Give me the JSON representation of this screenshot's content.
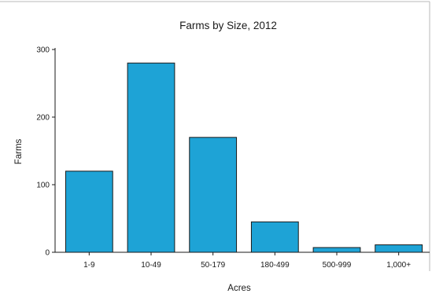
{
  "chart_data": {
    "type": "bar",
    "title": "Farms by Size, 2012",
    "xlabel": "Acres",
    "ylabel": "Farms",
    "categories": [
      "1-9",
      "10-49",
      "50-179",
      "180-499",
      "500-999",
      "1,000+"
    ],
    "values": [
      120,
      280,
      170,
      45,
      7,
      11
    ],
    "ylim": [
      0,
      300
    ],
    "yticks": [
      0,
      100,
      200,
      300
    ],
    "grid": false,
    "colors": {
      "bar": "#1ea3d6",
      "bar_edge": "#1a1a1a",
      "axis": "#1a1a1a",
      "border": "#b8b8b8"
    }
  }
}
